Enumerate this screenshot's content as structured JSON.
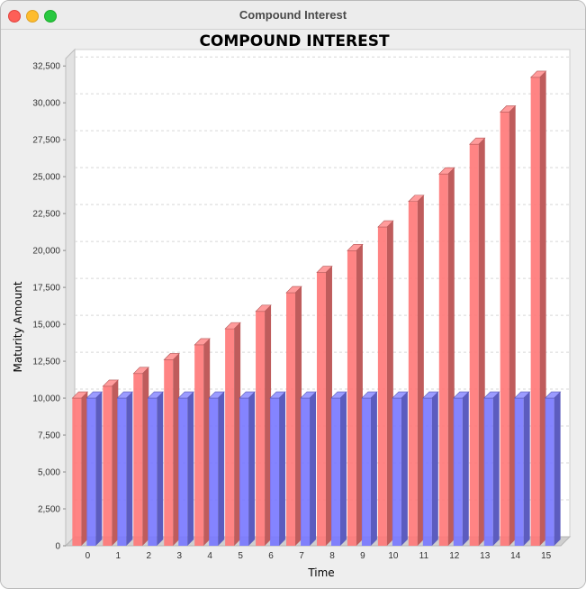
{
  "window": {
    "title": "Compound Interest"
  },
  "chart_data": {
    "type": "bar",
    "title": "COMPOUND INTEREST",
    "xlabel": "Time",
    "ylabel": "Maturity Amount",
    "categories": [
      "0",
      "1",
      "2",
      "3",
      "4",
      "5",
      "6",
      "7",
      "8",
      "9",
      "10",
      "11",
      "12",
      "13",
      "14",
      "15"
    ],
    "series": [
      {
        "values": [
          10000,
          10800,
          11664,
          12597,
          13605,
          14693,
          15869,
          17138,
          18509,
          19990,
          21589,
          23316,
          25182,
          27196,
          29372,
          31722
        ]
      },
      {
        "values": [
          10000,
          10000,
          10000,
          10000,
          10000,
          10000,
          10000,
          10000,
          10000,
          10000,
          10000,
          10000,
          10000,
          10000,
          10000,
          10000
        ]
      }
    ],
    "ylim": [
      0,
      33000
    ],
    "yticks": [
      0,
      2500,
      5000,
      7500,
      10000,
      12500,
      15000,
      17500,
      20000,
      22500,
      25000,
      27500,
      30000,
      32500
    ],
    "ytick_labels": [
      "0",
      "2,500",
      "5,000",
      "7,500",
      "10,000",
      "12,500",
      "15,000",
      "17,500",
      "20,000",
      "22,500",
      "25,000",
      "27,500",
      "30,000",
      "32,500"
    ],
    "grid": true,
    "colors": [
      "#ff7a7a",
      "#7a7aff"
    ]
  }
}
